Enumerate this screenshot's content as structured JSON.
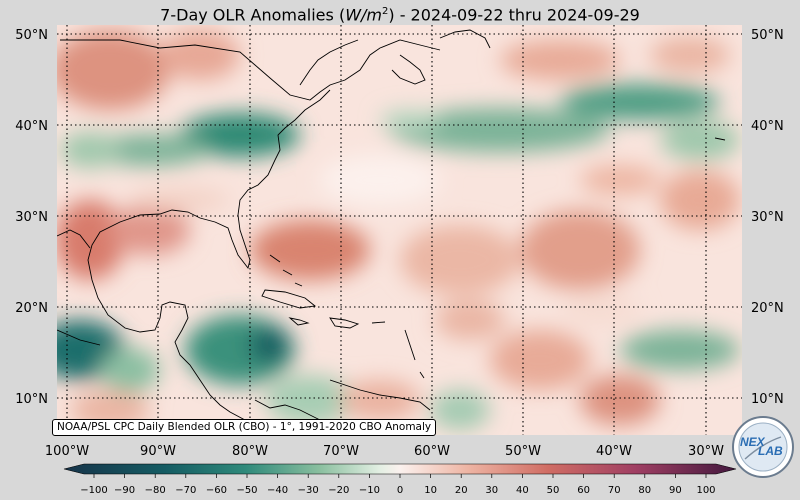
{
  "title": {
    "prefix": "7-Day OLR Anomalies (",
    "var": "W/m",
    "exp": "2",
    "suffix": ") - 2024-09-22 thru 2024-09-29"
  },
  "source_label": "NOAA/PSL CPC Daily Blended OLR (CBO) - 1°, 1991-2020 CBO Anomaly",
  "logo_text": {
    "top": "NEX",
    "bottom": "LAB"
  },
  "axes": {
    "longitude_ticks": [
      "100°W",
      "90°W",
      "80°W",
      "70°W",
      "60°W",
      "50°W",
      "40°W",
      "30°W"
    ],
    "latitude_ticks": [
      "50°N",
      "40°N",
      "30°N",
      "20°N",
      "10°N"
    ]
  },
  "colorbar": {
    "units": "W/m2",
    "ticks": [
      "−100",
      "−90",
      "−80",
      "−70",
      "−60",
      "−50",
      "−40",
      "−30",
      "−20",
      "−10",
      "0",
      "10",
      "20",
      "30",
      "40",
      "50",
      "60",
      "70",
      "80",
      "90",
      "100"
    ]
  },
  "colors": {
    "strong_negative": "#17344a",
    "negative": "#1f7a73",
    "weak_negative": "#84b9a0",
    "neutral": "#fbeeeb",
    "weak_positive": "#ecaf9c",
    "positive": "#d4826e",
    "strong_positive": "#7a2c5a"
  }
}
